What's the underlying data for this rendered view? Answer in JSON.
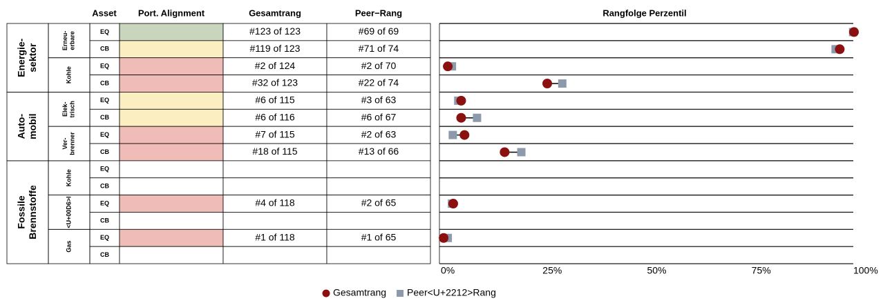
{
  "table": {
    "headers": [
      "Asset",
      "Port. Alignment",
      "Gesamtrang",
      "Peer−Rang"
    ],
    "sectors": [
      {
        "lines": [
          "Energie-",
          "sektor"
        ],
        "subsectors": [
          {
            "lines": [
              "Erneu-",
              "erbare"
            ],
            "rows": [
              {
                "asset": "EQ",
                "alignment": "#c9d5bc",
                "gesamtrang": "#123 of 123",
                "peer": "#69 of 69"
              },
              {
                "asset": "CB",
                "alignment": "#fbeec1",
                "gesamtrang": "#119 of 123",
                "peer": "#71 of 74"
              }
            ]
          },
          {
            "lines": [
              "Kohle"
            ],
            "rows": [
              {
                "asset": "EQ",
                "alignment": "#f0bcb8",
                "gesamtrang": "#2 of 124",
                "peer": "#2 of 70"
              },
              {
                "asset": "CB",
                "alignment": "#f0bcb8",
                "gesamtrang": "#32 of 123",
                "peer": "#22 of 74"
              }
            ]
          }
        ]
      },
      {
        "lines": [
          "Auto-",
          "mobil"
        ],
        "subsectors": [
          {
            "lines": [
              "Elek-",
              "trisch"
            ],
            "rows": [
              {
                "asset": "EQ",
                "alignment": "#fbeec1",
                "gesamtrang": "#6 of 115",
                "peer": "#3 of 63"
              },
              {
                "asset": "CB",
                "alignment": "#fbeec1",
                "gesamtrang": "#6 of 116",
                "peer": "#6 of 67"
              }
            ]
          },
          {
            "lines": [
              "Ver-",
              "brenner"
            ],
            "rows": [
              {
                "asset": "EQ",
                "alignment": "#f0bcb8",
                "gesamtrang": "#7 of 115",
                "peer": "#2 of 63"
              },
              {
                "asset": "CB",
                "alignment": "#f0bcb8",
                "gesamtrang": "#18 of 115",
                "peer": "#13 of 66"
              }
            ]
          }
        ]
      },
      {
        "lines": [
          "Fossile",
          "Brennstoffe"
        ],
        "subsectors": [
          {
            "lines": [
              "Kohle"
            ],
            "rows": [
              {
                "asset": "EQ",
                "alignment": null,
                "gesamtrang": null,
                "peer": null
              },
              {
                "asset": "CB",
                "alignment": null,
                "gesamtrang": null,
                "peer": null
              }
            ]
          },
          {
            "lines": [
              "<U+00D6>l"
            ],
            "rows": [
              {
                "asset": "EQ",
                "alignment": "#f0bcb8",
                "gesamtrang": "#4 of 118",
                "peer": "#2 of 65"
              },
              {
                "asset": "CB",
                "alignment": null,
                "gesamtrang": null,
                "peer": null
              }
            ]
          },
          {
            "lines": [
              "Gas"
            ],
            "rows": [
              {
                "asset": "EQ",
                "alignment": "#f0bcb8",
                "gesamtrang": "#1 of 118",
                "peer": "#1 of 65"
              },
              {
                "asset": "CB",
                "alignment": null,
                "gesamtrang": null,
                "peer": null
              }
            ]
          }
        ]
      }
    ]
  },
  "chart_data": {
    "type": "dot",
    "title": "Rangfolge Perzentil",
    "xlim": [
      -2,
      102
    ],
    "xticks": [
      {
        "value": 0,
        "label": "0%"
      },
      {
        "value": 25,
        "label": "25%"
      },
      {
        "value": 50,
        "label": "50%"
      },
      {
        "value": 75,
        "label": "75%"
      },
      {
        "value": 100,
        "label": "100%"
      }
    ],
    "series": [
      {
        "name": "Peer<U+2212>Rang",
        "color": "#8c9aab",
        "marker": "square",
        "values": [
          97,
          92.8,
          1,
          27.4,
          2.5,
          7,
          1.2,
          17.6,
          null,
          null,
          1,
          null,
          0,
          null
        ]
      },
      {
        "name": "Gesamtrang",
        "color": "#8b1010",
        "marker": "circle",
        "values": [
          97.2,
          93.8,
          0,
          23.8,
          3.2,
          3.2,
          4,
          13.6,
          null,
          null,
          1.3,
          null,
          -1,
          null
        ]
      }
    ],
    "legend": "bottom"
  }
}
